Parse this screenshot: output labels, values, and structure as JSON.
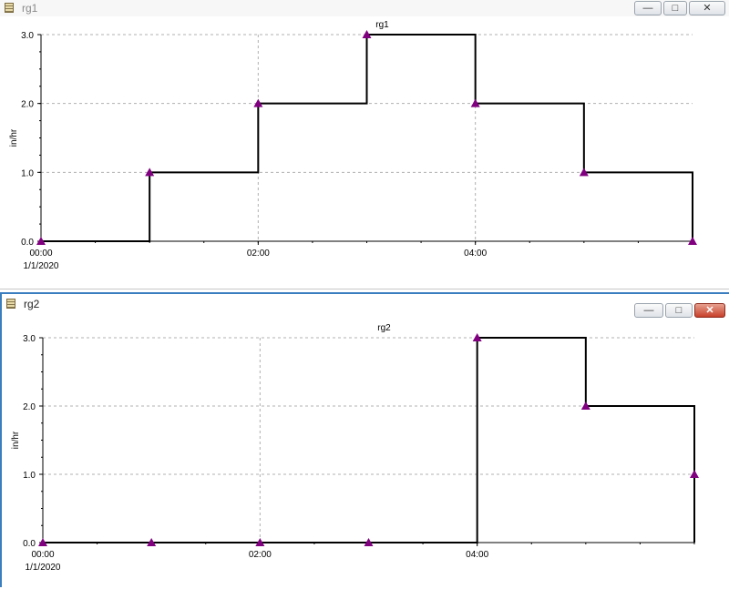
{
  "windows": [
    {
      "title": "rg1",
      "controls": {
        "minimize": "—",
        "maximize": "□",
        "close": "✕"
      },
      "chart_data": {
        "type": "line",
        "title": "rg1",
        "ylabel": "in/hr",
        "ylim": [
          0,
          3
        ],
        "xlim": [
          0,
          6
        ],
        "yticks": [
          "0.0",
          "1.0",
          "2.0",
          "3.0"
        ],
        "xticks": [
          {
            "hour": 0,
            "label": "00:00",
            "sublabel": "1/1/2020"
          },
          {
            "hour": 2,
            "label": "02:00",
            "sublabel": ""
          },
          {
            "hour": 4,
            "label": "04:00",
            "sublabel": ""
          }
        ],
        "grid": true,
        "step": true,
        "series": [
          {
            "x": [
              0,
              1,
              2,
              3,
              4,
              5,
              6
            ],
            "y": [
              0,
              1,
              2,
              3,
              2,
              1,
              0
            ]
          }
        ]
      }
    },
    {
      "title": "rg2",
      "controls": {
        "minimize": "—",
        "maximize": "□",
        "close": "✕"
      },
      "chart_data": {
        "type": "line",
        "title": "rg2",
        "ylabel": "in/hr",
        "ylim": [
          0,
          3
        ],
        "xlim": [
          0,
          6
        ],
        "yticks": [
          "0.0",
          "1.0",
          "2.0",
          "3.0"
        ],
        "xticks": [
          {
            "hour": 0,
            "label": "00:00",
            "sublabel": "1/1/2020"
          },
          {
            "hour": 2,
            "label": "02:00",
            "sublabel": ""
          },
          {
            "hour": 4,
            "label": "04:00",
            "sublabel": ""
          }
        ],
        "grid": true,
        "step": true,
        "series": [
          {
            "x": [
              0,
              1,
              2,
              3,
              4,
              5,
              6
            ],
            "y": [
              0,
              0,
              0,
              0,
              3,
              2,
              1
            ]
          }
        ]
      }
    }
  ],
  "colors": {
    "marker": "#800080",
    "line": "#000000",
    "grid": "#b0b0b0",
    "accent": "#3a7ebf",
    "close": "#c7402a"
  }
}
